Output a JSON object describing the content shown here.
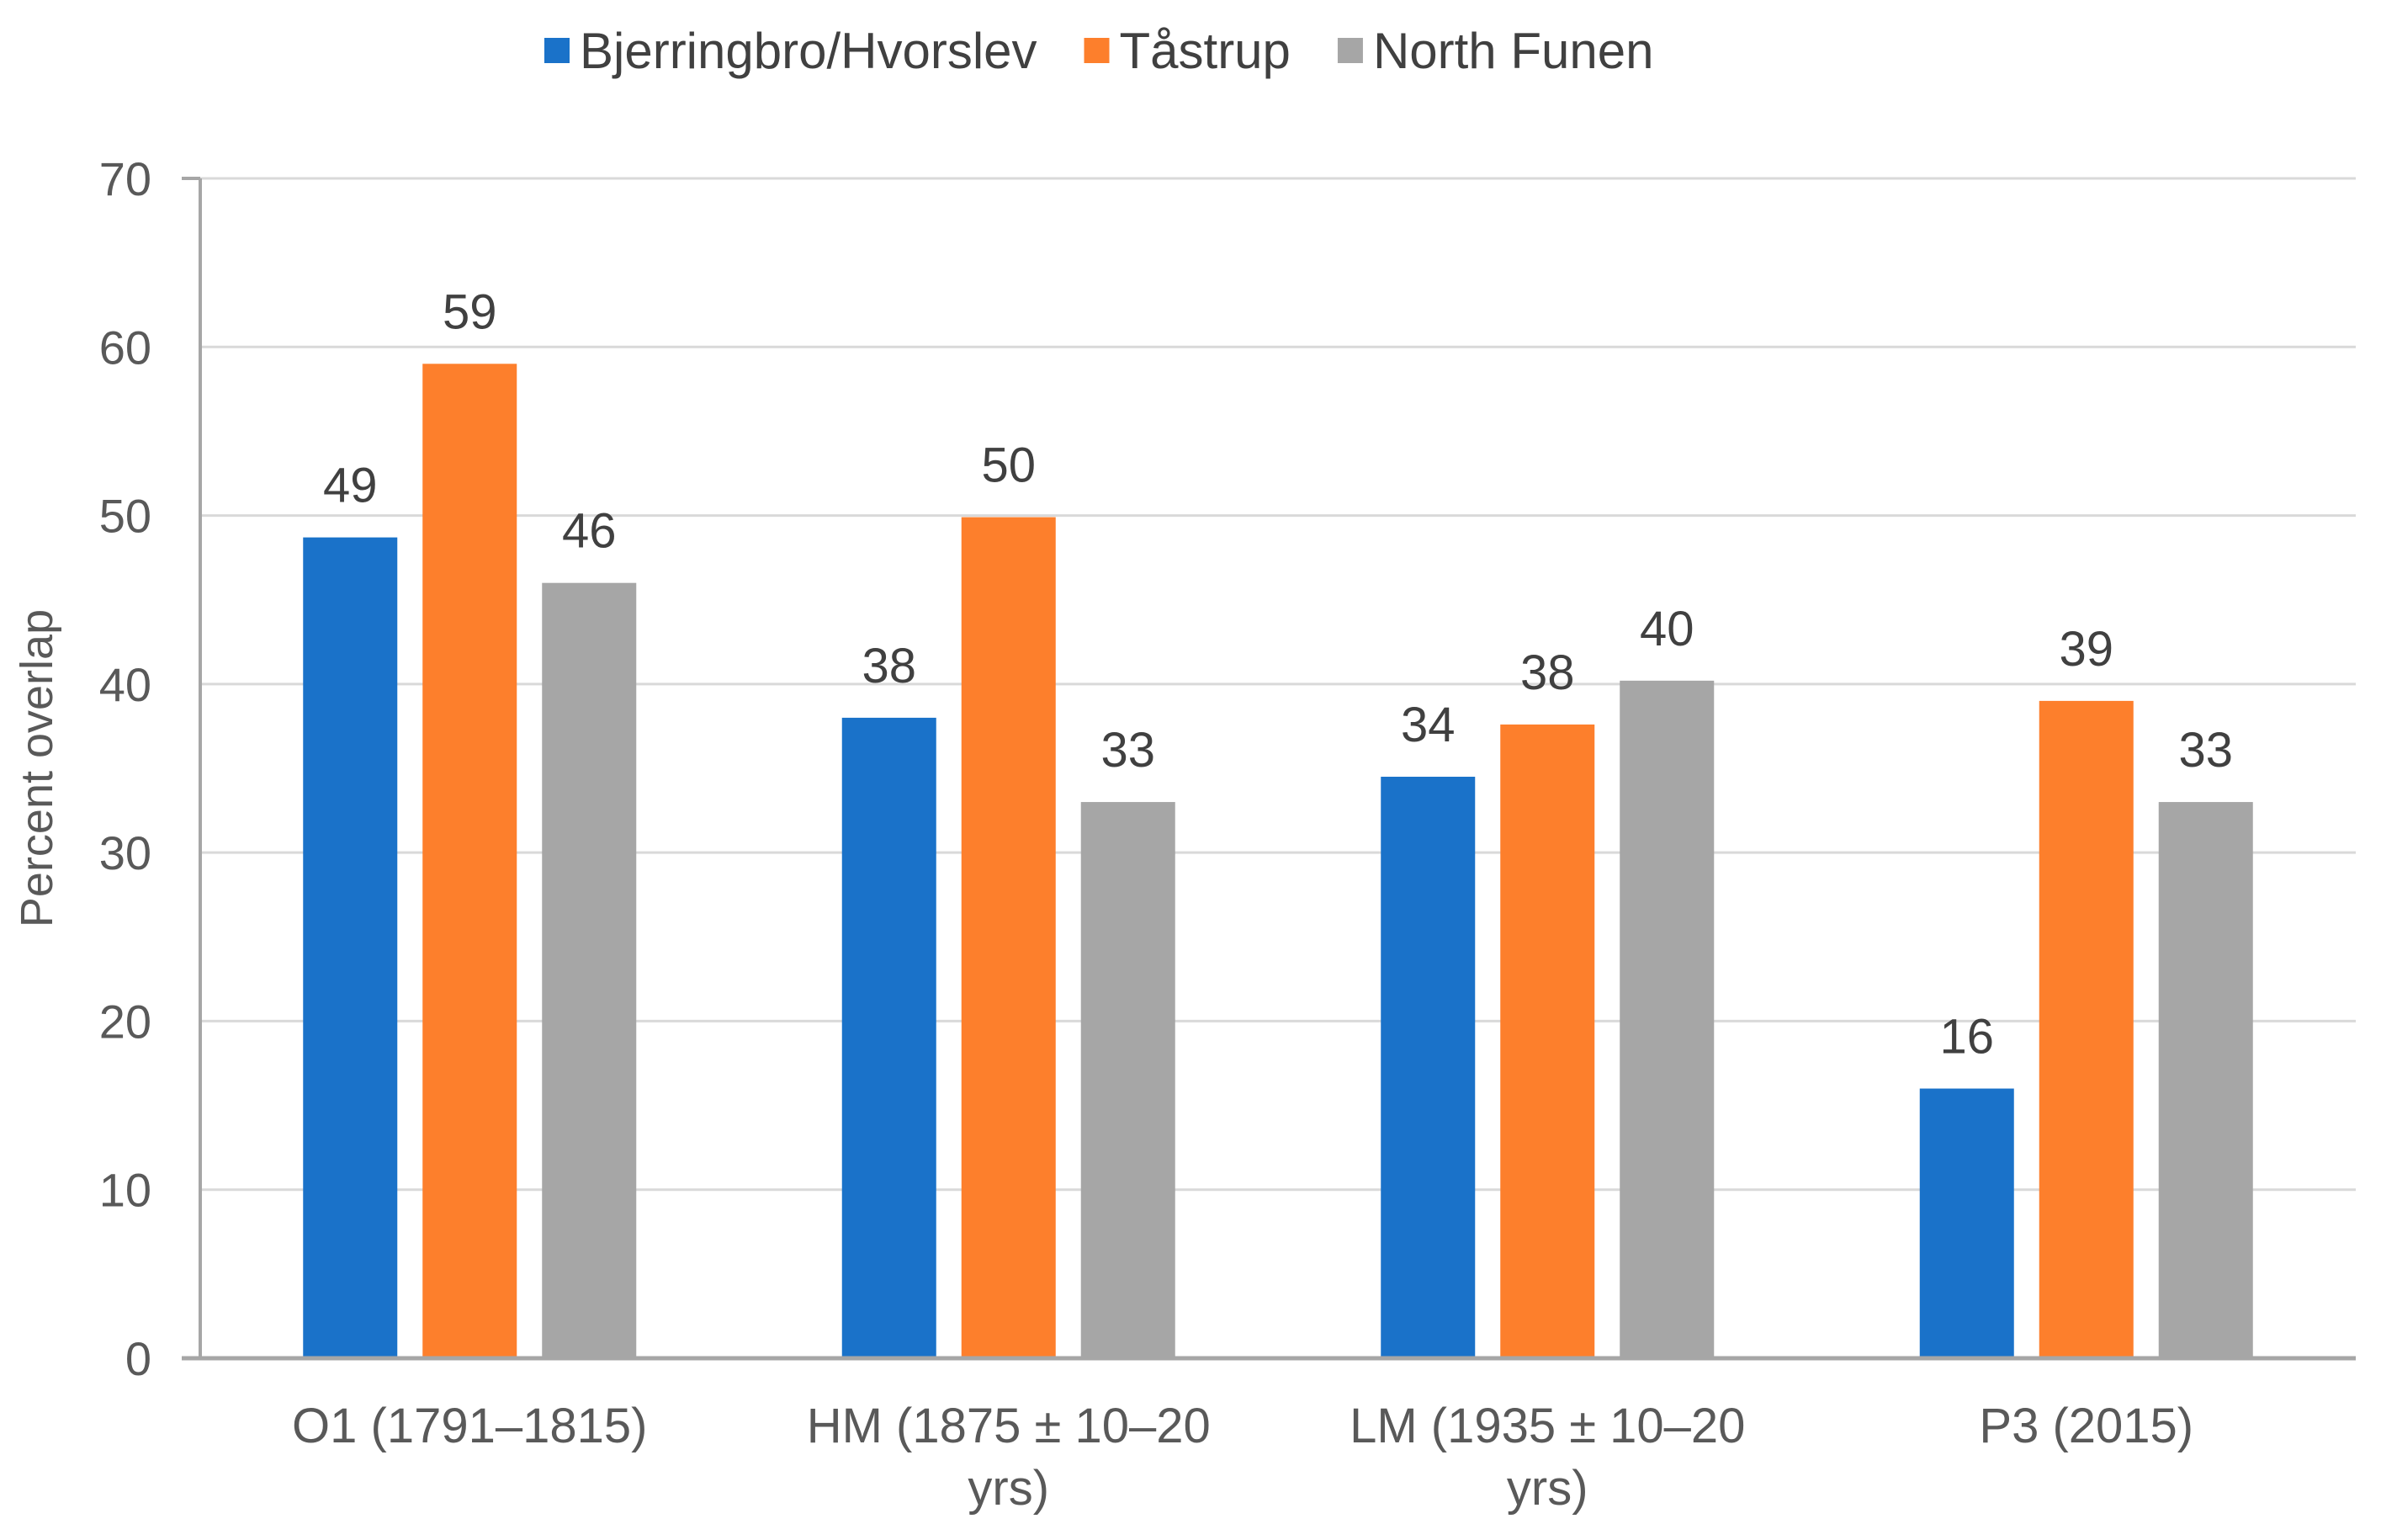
{
  "chart_data": {
    "type": "bar",
    "title": "",
    "xlabel": "",
    "ylabel": "Percent overlap",
    "ylim": [
      0,
      70
    ],
    "yticks": [
      0,
      10,
      20,
      30,
      40,
      50,
      60,
      70
    ],
    "grid": true,
    "legend_position": "top",
    "categories": [
      [
        "O1 (1791–1815)"
      ],
      [
        "HM (1875 ± 10–20",
        "yrs)"
      ],
      [
        "LM (1935 ± 10–20",
        "yrs)"
      ],
      [
        "P3 (2015)"
      ]
    ],
    "series": [
      {
        "name": "Bjerringbro/Hvorslev",
        "color": "#1a72c9",
        "values": [
          48.7,
          38,
          34.5,
          16
        ],
        "labels": [
          "49",
          "38",
          "34",
          "16"
        ]
      },
      {
        "name": "Tåstrup",
        "color": "#fd7f2c",
        "values": [
          59,
          49.9,
          37.6,
          39
        ],
        "labels": [
          "59",
          "50",
          "38",
          "39"
        ]
      },
      {
        "name": "North Funen",
        "color": "#a6a6a6",
        "values": [
          46,
          33,
          40.2,
          33
        ],
        "labels": [
          "46",
          "33",
          "40",
          "33"
        ]
      }
    ]
  }
}
